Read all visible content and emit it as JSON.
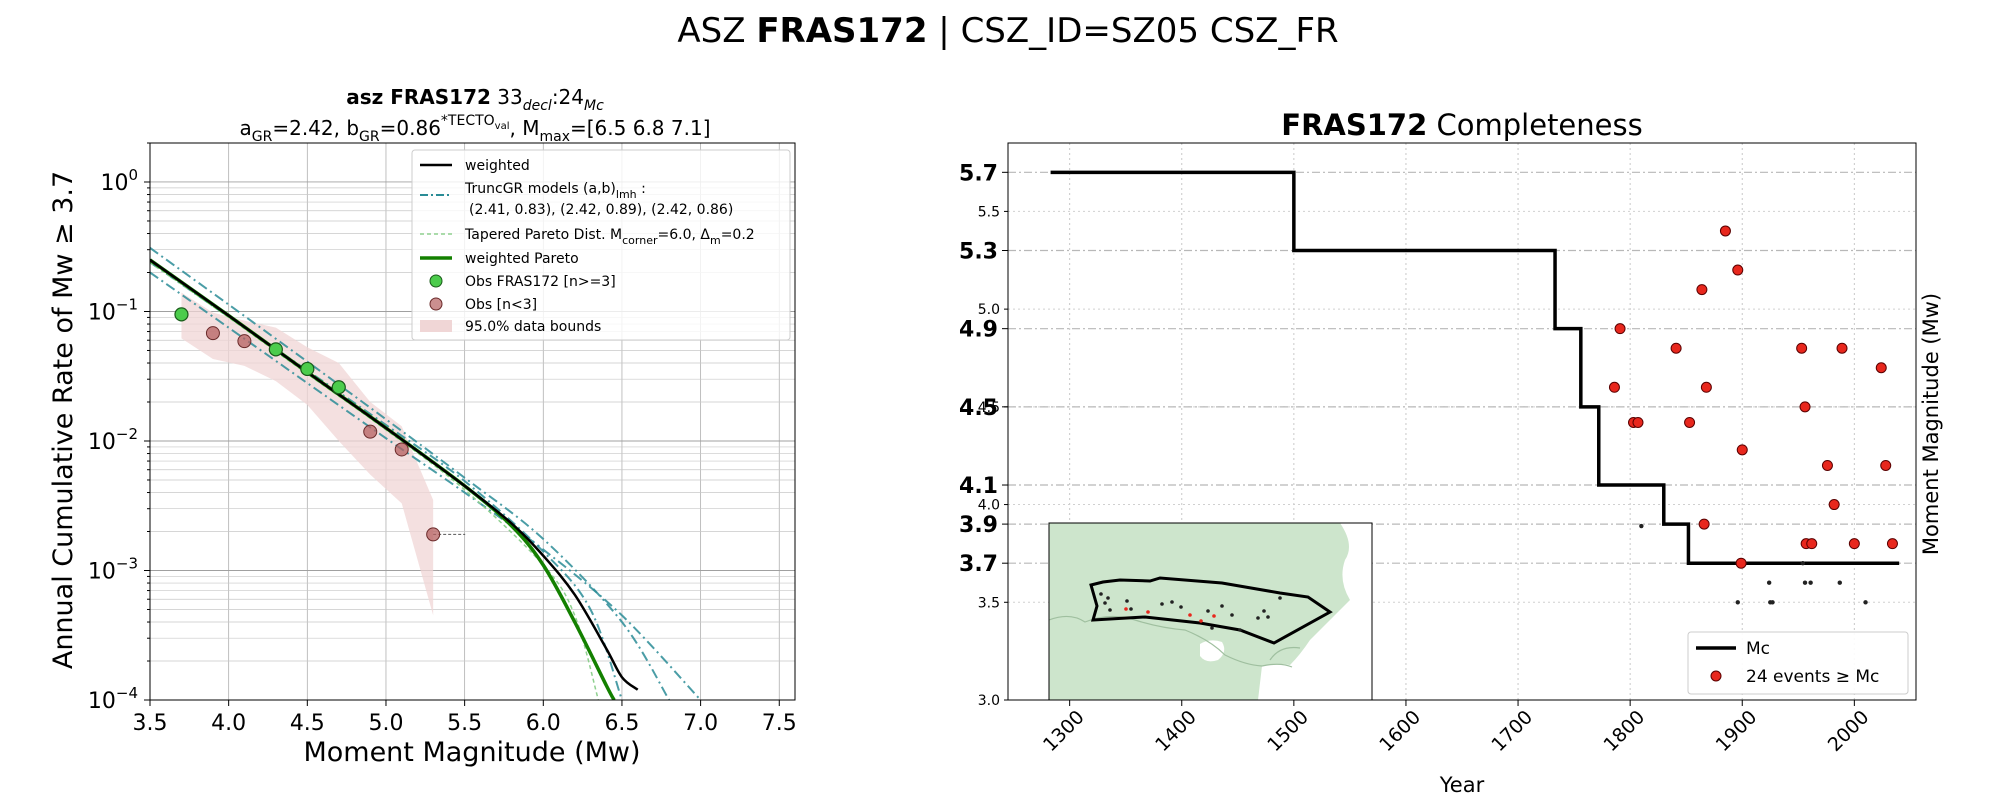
{
  "figure": {
    "title_prefix": "ASZ ",
    "title_bold": "FRAS172",
    "title_suffix": " | CSZ_ID=SZ05 CSZ_FR"
  },
  "left_panel": {
    "title_line1_bold": "asz FRAS172",
    "title_line1_rest": "  33",
    "title_line1_sub1": "decl",
    "title_line1_mid": ":24",
    "title_line1_sub2": "Mc",
    "title_line2": {
      "a_prefix": "a",
      "a_sub": "GR",
      "a_val": "=2.42,  b",
      "b_sub": "GR",
      "b_val": "=0.86",
      "b_sup": "*TECTO",
      "b_sup_sub": "val",
      "m_prefix": ", M",
      "m_sub": "max",
      "m_val": "=[6.5 6.8 7.1]"
    },
    "legend": {
      "weighted": "weighted",
      "truncgr_line1": "TruncGR models (a,b)",
      "truncgr_sub": "lmh",
      "truncgr_colon": " :",
      "truncgr_line2": "(2.41, 0.83), (2.42, 0.89), (2.42, 0.86)",
      "tapered_prefix": "Tapered Pareto Dist. M",
      "tapered_sub1": "corner",
      "tapered_mid": "=6.0, Δ",
      "tapered_sub2": "m",
      "tapered_end": "=0.2",
      "weighted_pareto": "weighted Pareto",
      "obs_main": "Obs FRAS172 [n>=3]",
      "obs_low": "Obs [n<3]",
      "bounds": "95.0% data bounds"
    },
    "colors": {
      "weighted": "#000000",
      "truncgr": "#2a8c96",
      "tapered": "#8fd08f",
      "weighted_pareto": "#138000",
      "obs_main": "#4ccc4c",
      "obs_low": "#b56060",
      "bounds": "#f0d6d6"
    }
  },
  "right_panel": {
    "title_bold": "FRAS172",
    "title_rest": " Completeness",
    "legend_mc": "Mc",
    "legend_events": "24 events ≥  Mc",
    "colors": {
      "mc": "#000000",
      "events": "#e8271d",
      "map_land": "#cde5cc"
    }
  },
  "chart_data": [
    {
      "type": "line",
      "xlabel": "Moment Magnitude (Mw)",
      "ylabel": "Annual Cumulative Rate of Mw  ≥  3.7",
      "xlim": [
        3.5,
        7.6
      ],
      "ylim": [
        0.0001,
        2
      ],
      "yscale": "log",
      "grid": true,
      "legend_position": "top-right",
      "xticks": [
        "3.5",
        "4.0",
        "4.5",
        "5.0",
        "5.5",
        "6.0",
        "6.5",
        "7.0",
        "7.5"
      ],
      "yticks": [
        {
          "base": "10",
          "exp": "0",
          "value": 1
        },
        {
          "base": "10",
          "exp": "−1",
          "value": 0.1
        },
        {
          "base": "10",
          "exp": "−2",
          "value": 0.01
        },
        {
          "base": "10",
          "exp": "−3",
          "value": 0.001
        },
        {
          "base": "10",
          "exp": "−4",
          "value": 0.0001
        }
      ],
      "series": [
        {
          "name": "weighted",
          "x": [
            3.5,
            4.0,
            4.5,
            5.0,
            5.5,
            5.8,
            6.0,
            6.2,
            6.4,
            6.5,
            6.6
          ],
          "y": [
            0.25,
            0.093,
            0.034,
            0.0126,
            0.0045,
            0.0023,
            0.0013,
            0.00065,
            0.00025,
            0.00015,
            0.00012
          ]
        },
        {
          "name": "TruncGR low",
          "x": [
            3.5,
            4.0,
            4.5,
            5.0,
            5.5,
            6.0,
            6.3,
            6.5
          ],
          "y": [
            0.24,
            0.091,
            0.035,
            0.0133,
            0.0049,
            0.0014,
            0.0005,
            0.0001
          ]
        },
        {
          "name": "TruncGR mid",
          "x": [
            3.5,
            4.0,
            4.5,
            5.0,
            5.5,
            6.0,
            6.5,
            6.8
          ],
          "y": [
            0.31,
            0.113,
            0.041,
            0.0147,
            0.0052,
            0.00175,
            0.0004,
            0.0001
          ]
        },
        {
          "name": "TruncGR high",
          "x": [
            3.5,
            4.0,
            4.5,
            5.0,
            5.5,
            6.0,
            6.5,
            7.0
          ],
          "y": [
            0.2,
            0.075,
            0.028,
            0.0105,
            0.004,
            0.00145,
            0.00045,
            0.0001
          ]
        },
        {
          "name": "Tapered Pareto",
          "x": [
            3.5,
            4.0,
            4.5,
            5.0,
            5.5,
            6.0,
            6.2,
            6.35
          ],
          "y": [
            0.24,
            0.09,
            0.033,
            0.0122,
            0.0042,
            0.0011,
            0.00045,
            0.0001
          ]
        },
        {
          "name": "weighted Pareto",
          "x": [
            3.5,
            4.0,
            4.5,
            5.0,
            5.5,
            5.8,
            6.0,
            6.2,
            6.4,
            6.45
          ],
          "y": [
            0.25,
            0.093,
            0.034,
            0.0126,
            0.0045,
            0.0022,
            0.0011,
            0.0004,
            0.00013,
            0.0001
          ]
        }
      ],
      "obs_main": {
        "name": "Obs FRAS172 [n>=3]",
        "x": [
          3.7,
          4.3,
          4.5,
          4.7
        ],
        "y": [
          0.095,
          0.051,
          0.036,
          0.026
        ]
      },
      "obs_low": {
        "name": "Obs [n<3]",
        "x": [
          3.9,
          4.1,
          4.9,
          5.1,
          5.3
        ],
        "y": [
          0.068,
          0.059,
          0.0118,
          0.0086,
          0.0019
        ]
      },
      "bounds": {
        "name": "95.0% data bounds",
        "upper": [
          [
            3.7,
            0.14
          ],
          [
            3.9,
            0.098
          ],
          [
            4.1,
            0.085
          ],
          [
            4.3,
            0.075
          ],
          [
            4.5,
            0.053
          ],
          [
            4.7,
            0.04
          ],
          [
            4.9,
            0.02
          ],
          [
            5.1,
            0.013
          ],
          [
            5.3,
            0.0035
          ]
        ],
        "lower": [
          [
            3.7,
            0.062
          ],
          [
            3.9,
            0.043
          ],
          [
            4.1,
            0.038
          ],
          [
            4.3,
            0.029
          ],
          [
            4.5,
            0.019
          ],
          [
            4.7,
            0.01
          ],
          [
            4.9,
            0.0055
          ],
          [
            5.1,
            0.0033
          ],
          [
            5.3,
            0.00045
          ]
        ]
      }
    },
    {
      "type": "scatter",
      "xlabel": "Year",
      "ylabel": "Moment Magnitude (Mw)",
      "xlim": [
        1245,
        2055
      ],
      "ylim": [
        3.0,
        5.85
      ],
      "grid": true,
      "legend_position": "bottom-right",
      "xticks": [
        "1300",
        "1400",
        "1500",
        "1600",
        "1700",
        "1800",
        "1900",
        "2000"
      ],
      "yticks_small": [
        "3.0",
        "3.5",
        "4.0",
        "4.5",
        "5.0",
        "5.5"
      ],
      "yticks_bold": [
        "3.7",
        "3.9",
        "4.1",
        "4.5",
        "4.9",
        "5.3",
        "5.7"
      ],
      "mc_steps": [
        [
          1283,
          5.7
        ],
        [
          1500,
          5.7
        ],
        [
          1500,
          5.3
        ],
        [
          1733,
          5.3
        ],
        [
          1733,
          4.9
        ],
        [
          1756,
          4.9
        ],
        [
          1756,
          4.5
        ],
        [
          1772,
          4.5
        ],
        [
          1772,
          4.1
        ],
        [
          1830,
          4.1
        ],
        [
          1830,
          3.9
        ],
        [
          1852,
          3.9
        ],
        [
          1852,
          3.7
        ],
        [
          2040,
          3.7
        ]
      ],
      "events_above_mc": [
        [
          1791,
          4.9
        ],
        [
          1786,
          4.6
        ],
        [
          1803,
          4.42
        ],
        [
          1807,
          4.42
        ],
        [
          1841,
          4.8
        ],
        [
          1853,
          4.42
        ],
        [
          1864,
          5.1
        ],
        [
          1868,
          4.6
        ],
        [
          1866,
          3.9
        ],
        [
          1885,
          5.4
        ],
        [
          1896,
          5.2
        ],
        [
          1900,
          4.28
        ],
        [
          1899,
          3.7
        ],
        [
          1953,
          4.8
        ],
        [
          1956,
          4.5
        ],
        [
          1957,
          3.8
        ],
        [
          1976,
          4.2
        ],
        [
          1982,
          4.0
        ],
        [
          1989,
          4.8
        ],
        [
          1962,
          3.8
        ],
        [
          2000,
          3.8
        ],
        [
          2024,
          4.7
        ],
        [
          2028,
          4.2
        ],
        [
          2034,
          3.8
        ]
      ],
      "events_below_mc": [
        [
          1810,
          3.89
        ],
        [
          1896,
          3.5
        ],
        [
          1924,
          3.6
        ],
        [
          1925,
          3.5
        ],
        [
          1927,
          3.5
        ],
        [
          1954,
          3.7
        ],
        [
          1956,
          3.6
        ],
        [
          1961,
          3.6
        ],
        [
          1987,
          3.6
        ],
        [
          2010,
          3.5
        ]
      ]
    }
  ]
}
